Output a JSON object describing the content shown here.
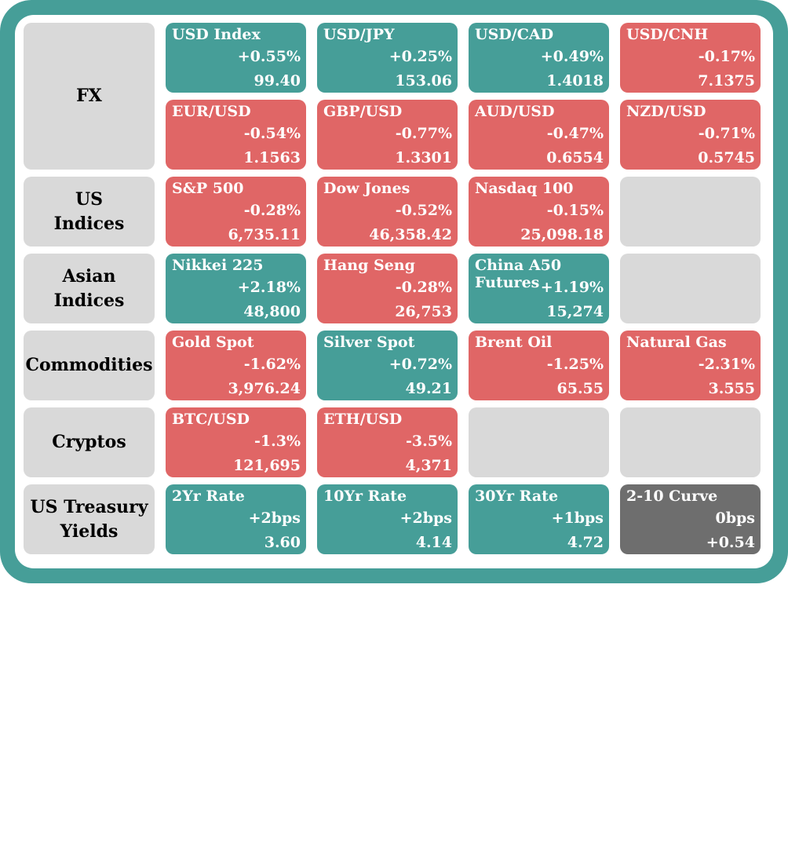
{
  "colors": {
    "up": "#469e98",
    "down": "#e06666",
    "neutral": "#6e6e6e",
    "empty": "#d9d9d9",
    "frame": "#469e98"
  },
  "categories": [
    {
      "label": "FX"
    },
    {
      "label": "US\nIndices"
    },
    {
      "label": "Asian\nIndices"
    },
    {
      "label": "Commodities"
    },
    {
      "label": "Cryptos"
    },
    {
      "label": "US Treasury\nYields"
    }
  ],
  "tiles": {
    "usd_index": {
      "name": "USD Index",
      "change": "+0.55%",
      "value": "99.40",
      "direction": "up"
    },
    "usd_jpy": {
      "name": "USD/JPY",
      "change": "+0.25%",
      "value": "153.06",
      "direction": "up"
    },
    "usd_cad": {
      "name": "USD/CAD",
      "change": "+0.49%",
      "value": "1.4018",
      "direction": "up"
    },
    "usd_cnh": {
      "name": "USD/CNH",
      "change": "-0.17%",
      "value": "7.1375",
      "direction": "down"
    },
    "eur_usd": {
      "name": "EUR/USD",
      "change": "-0.54%",
      "value": "1.1563",
      "direction": "down"
    },
    "gbp_usd": {
      "name": "GBP/USD",
      "change": "-0.77%",
      "value": "1.3301",
      "direction": "down"
    },
    "aud_usd": {
      "name": "AUD/USD",
      "change": "-0.47%",
      "value": "0.6554",
      "direction": "down"
    },
    "nzd_usd": {
      "name": "NZD/USD",
      "change": "-0.71%",
      "value": "0.5745",
      "direction": "down"
    },
    "sp500": {
      "name": "S&P 500",
      "change": "-0.28%",
      "value": "6,735.11",
      "direction": "down"
    },
    "dow": {
      "name": "Dow Jones",
      "change": "-0.52%",
      "value": "46,358.42",
      "direction": "down"
    },
    "nasdaq": {
      "name": "Nasdaq 100",
      "change": "-0.15%",
      "value": "25,098.18",
      "direction": "down"
    },
    "nikkei": {
      "name": "Nikkei 225",
      "change": "+2.18%",
      "value": "48,800",
      "direction": "up"
    },
    "hang_seng": {
      "name": "Hang Seng",
      "change": "-0.28%",
      "value": "26,753",
      "direction": "down"
    },
    "china_a50": {
      "name": "China A50\nFutures",
      "change": "+1.19%",
      "value": "15,274",
      "direction": "up"
    },
    "gold": {
      "name": "Gold Spot",
      "change": "-1.62%",
      "value": "3,976.24",
      "direction": "down"
    },
    "silver": {
      "name": "Silver Spot",
      "change": "+0.72%",
      "value": "49.21",
      "direction": "up"
    },
    "brent": {
      "name": "Brent Oil",
      "change": "-1.25%",
      "value": "65.55",
      "direction": "down"
    },
    "natgas": {
      "name": "Natural Gas",
      "change": "-2.31%",
      "value": "3.555",
      "direction": "down"
    },
    "btc": {
      "name": "BTC/USD",
      "change": "-1.3%",
      "value": "121,695",
      "direction": "down"
    },
    "eth": {
      "name": "ETH/USD",
      "change": "-3.5%",
      "value": "4,371",
      "direction": "down"
    },
    "yr2": {
      "name": "2Yr Rate",
      "change": "+2bps",
      "value": "3.60",
      "direction": "up"
    },
    "yr10": {
      "name": "10Yr Rate",
      "change": "+2bps",
      "value": "4.14",
      "direction": "up"
    },
    "yr30": {
      "name": "30Yr Rate",
      "change": "+1bps",
      "value": "4.72",
      "direction": "up"
    },
    "curve_2_10": {
      "name": "2-10 Curve",
      "change": "0bps",
      "value": "+0.54",
      "direction": "neutral"
    }
  }
}
